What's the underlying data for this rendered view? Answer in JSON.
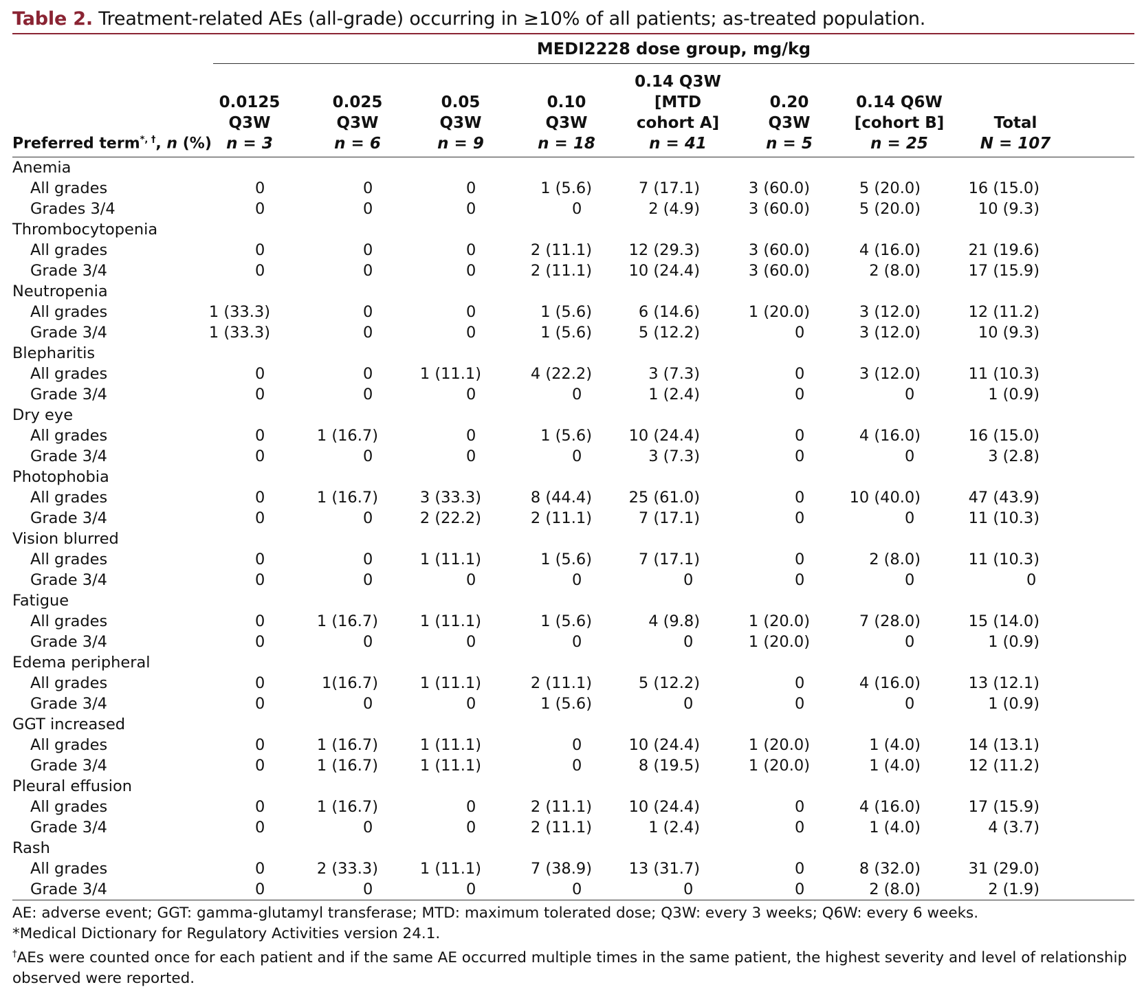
{
  "caption": {
    "label": "Table 2.",
    "text": "Treatment-related AEs (all-grade) occurring in ≥10% of all patients; as-treated population."
  },
  "header": {
    "group_title": "MEDI2228 dose group, mg/kg",
    "preferred_term": "Preferred term",
    "preferred_term_sup": "*, †",
    "preferred_term_suffix": ", n (%)",
    "columns": [
      {
        "lines": [
          "0.0125",
          "Q3W"
        ],
        "n": "n = 3"
      },
      {
        "lines": [
          "0.025",
          "Q3W"
        ],
        "n": "n = 6"
      },
      {
        "lines": [
          "0.05",
          "Q3W"
        ],
        "n": "n = 9"
      },
      {
        "lines": [
          "0.10",
          "Q3W"
        ],
        "n": "n = 18"
      },
      {
        "lines": [
          "0.14 Q3W",
          "[MTD",
          "cohort A]"
        ],
        "n": "n = 41"
      },
      {
        "lines": [
          "0.20",
          "Q3W"
        ],
        "n": "n = 5"
      },
      {
        "lines": [
          "0.14 Q6W",
          "[cohort B]"
        ],
        "n": "n = 25"
      },
      {
        "lines": [
          "Total"
        ],
        "n": "N = 107"
      }
    ]
  },
  "groups": [
    {
      "term": "Anemia",
      "rows": [
        {
          "label": "All grades",
          "values": [
            "0",
            "0",
            "0",
            "1 (5.6)",
            "7 (17.1)",
            "3 (60.0)",
            "5 (20.0)",
            "16 (15.0)"
          ]
        },
        {
          "label": "Grades 3/4",
          "values": [
            "0",
            "0",
            "0",
            "0",
            "2 (4.9)",
            "3 (60.0)",
            "5 (20.0)",
            "10 (9.3)"
          ]
        }
      ]
    },
    {
      "term": "Thrombocytopenia",
      "rows": [
        {
          "label": "All grades",
          "values": [
            "0",
            "0",
            "0",
            "2 (11.1)",
            "12 (29.3)",
            "3 (60.0)",
            "4 (16.0)",
            "21 (19.6)"
          ]
        },
        {
          "label": "Grade 3/4",
          "values": [
            "0",
            "0",
            "0",
            "2 (11.1)",
            "10 (24.4)",
            "3 (60.0)",
            "2 (8.0)",
            "17 (15.9)"
          ]
        }
      ]
    },
    {
      "term": "Neutropenia",
      "rows": [
        {
          "label": "All grades",
          "values": [
            "1 (33.3)",
            "0",
            "0",
            "1 (5.6)",
            "6 (14.6)",
            "1 (20.0)",
            "3 (12.0)",
            "12 (11.2)"
          ]
        },
        {
          "label": "Grade 3/4",
          "values": [
            "1 (33.3)",
            "0",
            "0",
            "1 (5.6)",
            "5 (12.2)",
            "0",
            "3 (12.0)",
            "10 (9.3)"
          ]
        }
      ]
    },
    {
      "term": "Blepharitis",
      "rows": [
        {
          "label": "All grades",
          "values": [
            "0",
            "0",
            "1 (11.1)",
            "4 (22.2)",
            "3 (7.3)",
            "0",
            "3 (12.0)",
            "11 (10.3)"
          ]
        },
        {
          "label": "Grade 3/4",
          "values": [
            "0",
            "0",
            "0",
            "0",
            "1 (2.4)",
            "0",
            "0",
            "1 (0.9)"
          ]
        }
      ]
    },
    {
      "term": "Dry eye",
      "rows": [
        {
          "label": "All grades",
          "values": [
            "0",
            "1 (16.7)",
            "0",
            "1 (5.6)",
            "10 (24.4)",
            "0",
            "4 (16.0)",
            "16 (15.0)"
          ]
        },
        {
          "label": "Grade 3/4",
          "values": [
            "0",
            "0",
            "0",
            "0",
            "3 (7.3)",
            "0",
            "0",
            "3 (2.8)"
          ]
        }
      ]
    },
    {
      "term": "Photophobia",
      "rows": [
        {
          "label": "All grades",
          "values": [
            "0",
            "1 (16.7)",
            "3 (33.3)",
            "8 (44.4)",
            "25 (61.0)",
            "0",
            "10 (40.0)",
            "47 (43.9)"
          ]
        },
        {
          "label": "Grade 3/4",
          "values": [
            "0",
            "0",
            "2 (22.2)",
            "2 (11.1)",
            "7 (17.1)",
            "0",
            "0",
            "11 (10.3)"
          ]
        }
      ]
    },
    {
      "term": "Vision blurred",
      "rows": [
        {
          "label": "All grades",
          "values": [
            "0",
            "0",
            "1 (11.1)",
            "1 (5.6)",
            "7 (17.1)",
            "0",
            "2 (8.0)",
            "11 (10.3)"
          ]
        },
        {
          "label": "Grade 3/4",
          "values": [
            "0",
            "0",
            "0",
            "0",
            "0",
            "0",
            "0",
            "0"
          ]
        }
      ]
    },
    {
      "term": "Fatigue",
      "rows": [
        {
          "label": "All grades",
          "values": [
            "0",
            "1 (16.7)",
            "1 (11.1)",
            "1 (5.6)",
            "4 (9.8)",
            "1 (20.0)",
            "7 (28.0)",
            "15 (14.0)"
          ]
        },
        {
          "label": "Grade 3/4",
          "values": [
            "0",
            "0",
            "0",
            "0",
            "0",
            "1 (20.0)",
            "0",
            "1 (0.9)"
          ]
        }
      ]
    },
    {
      "term": "Edema peripheral",
      "rows": [
        {
          "label": "All grades",
          "values": [
            "0",
            "1(16.7)",
            "1 (11.1)",
            "2 (11.1)",
            "5 (12.2)",
            "0",
            "4 (16.0)",
            "13 (12.1)"
          ]
        },
        {
          "label": "Grade 3/4",
          "values": [
            "0",
            "0",
            "0",
            "1 (5.6)",
            "0",
            "0",
            "0",
            "1 (0.9)"
          ]
        }
      ]
    },
    {
      "term": "GGT increased",
      "rows": [
        {
          "label": "All grades",
          "values": [
            "0",
            "1 (16.7)",
            "1 (11.1)",
            "0",
            "10 (24.4)",
            "1 (20.0)",
            "1 (4.0)",
            "14 (13.1)"
          ]
        },
        {
          "label": "Grade 3/4",
          "values": [
            "0",
            "1 (16.7)",
            "1 (11.1)",
            "0",
            "8 (19.5)",
            "1 (20.0)",
            "1 (4.0)",
            "12 (11.2)"
          ]
        }
      ]
    },
    {
      "term": "Pleural effusion",
      "rows": [
        {
          "label": "All grades",
          "values": [
            "0",
            "1 (16.7)",
            "0",
            "2 (11.1)",
            "10 (24.4)",
            "0",
            "4 (16.0)",
            "17 (15.9)"
          ]
        },
        {
          "label": "Grade 3/4",
          "values": [
            "0",
            "0",
            "0",
            "2 (11.1)",
            "1 (2.4)",
            "0",
            "1 (4.0)",
            "4 (3.7)"
          ]
        }
      ]
    },
    {
      "term": "Rash",
      "rows": [
        {
          "label": "All grades",
          "values": [
            "0",
            "2 (33.3)",
            "1 (11.1)",
            "7 (38.9)",
            "13 (31.7)",
            "0",
            "8 (32.0)",
            "31 (29.0)"
          ]
        },
        {
          "label": "Grade 3/4",
          "values": [
            "0",
            "0",
            "0",
            "0",
            "0",
            "0",
            "2 (8.0)",
            "2 (1.9)"
          ]
        }
      ]
    }
  ],
  "footnotes": {
    "abbrev": "AE: adverse event; GGT: gamma-glutamyl transferase; MTD: maximum tolerated dose; Q3W: every 3 weeks; Q6W: every 6 weeks.",
    "star_mark": "*",
    "star": "Medical Dictionary for Regulatory Activities version 24.1.",
    "dagger_mark": "†",
    "dagger": "AEs were counted once for each patient and if the same AE occurred multiple times in the same patient, the highest severity and level of relationship observed were reported."
  }
}
